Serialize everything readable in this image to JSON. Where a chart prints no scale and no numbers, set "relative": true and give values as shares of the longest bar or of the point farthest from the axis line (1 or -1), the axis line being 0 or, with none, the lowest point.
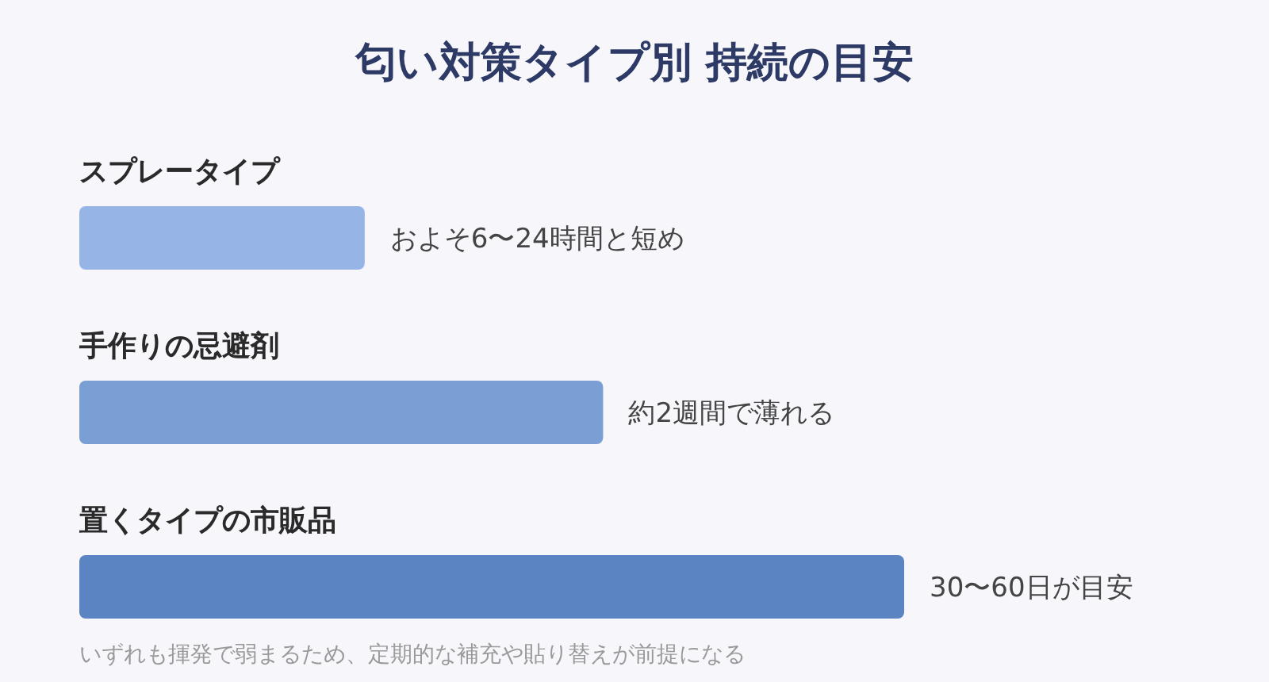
{
  "chart_data": {
    "type": "bar",
    "orientation": "horizontal",
    "relative": true,
    "title": "匂い対策タイプ別 持続の目安",
    "categories": [
      "スプレータイプ",
      "手作りの忌避剤",
      "置くタイプの市販品"
    ],
    "values": [
      0.346,
      0.635,
      1
    ],
    "colors": [
      "#97b4e6",
      "#7a9fd4",
      "#5b84c2"
    ],
    "annotations": [
      {
        "text": "およそ6〜24時間と短め",
        "x": 0.346,
        "y": "スプレータイプ"
      },
      {
        "text": "約2週間で薄れる",
        "x": 0.635,
        "y": "手作りの忌避剤"
      },
      {
        "text": "30〜60日が目安",
        "x": 1,
        "y": "置くタイプの市販品"
      },
      "いずれも揮発で弱まるため、定期的な補充や貼り替えが前提になる"
    ]
  }
}
